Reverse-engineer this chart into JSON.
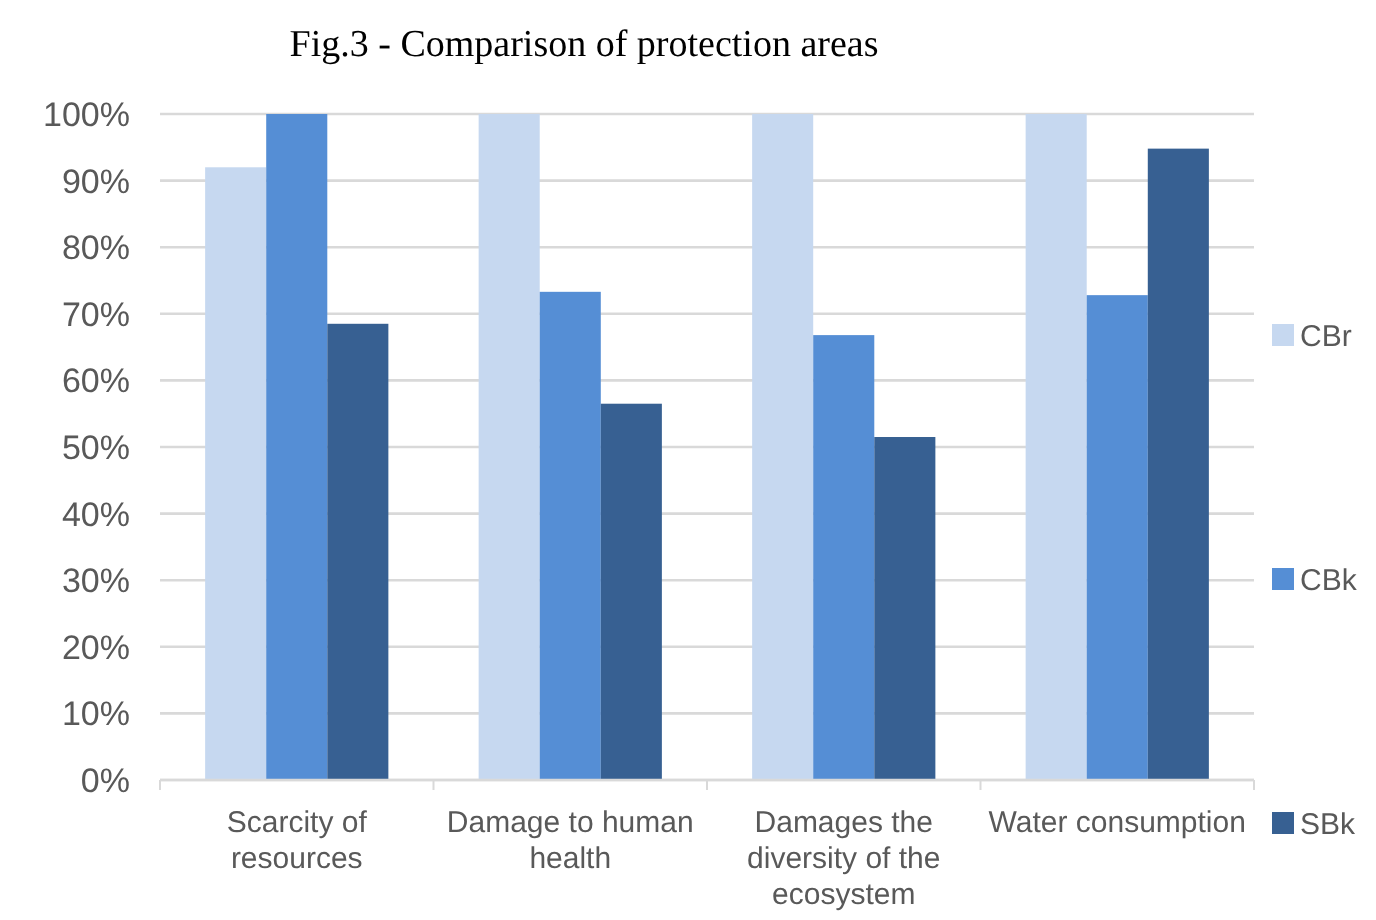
{
  "chart_data": {
    "type": "bar",
    "title": "Fig.3 - Comparison of protection areas",
    "categories": [
      "Scarcity of resources",
      "Damage to human health",
      "Damages the diversity of the ecosystem",
      "Water consumption"
    ],
    "series": [
      {
        "name": "CBr",
        "color": "#c6d8f0",
        "values": [
          92,
          100,
          100,
          100
        ]
      },
      {
        "name": "CBk",
        "color": "#558ed5",
        "values": [
          100,
          73.3,
          66.8,
          72.8
        ]
      },
      {
        "name": "SBk",
        "color": "#376092",
        "values": [
          68.5,
          56.5,
          51.5,
          94.8
        ]
      }
    ],
    "ylim": [
      0,
      100
    ],
    "yticks": [
      {
        "value": 0,
        "label": "0%"
      },
      {
        "value": 10,
        "label": "10%"
      },
      {
        "value": 20,
        "label": "20%"
      },
      {
        "value": 30,
        "label": "30%"
      },
      {
        "value": 40,
        "label": "40%"
      },
      {
        "value": 50,
        "label": "50%"
      },
      {
        "value": 60,
        "label": "60%"
      },
      {
        "value": 70,
        "label": "70%"
      },
      {
        "value": 80,
        "label": "80%"
      },
      {
        "value": 90,
        "label": "90%"
      },
      {
        "value": 100,
        "label": "100%"
      }
    ],
    "grid": "y",
    "legend": "right"
  }
}
